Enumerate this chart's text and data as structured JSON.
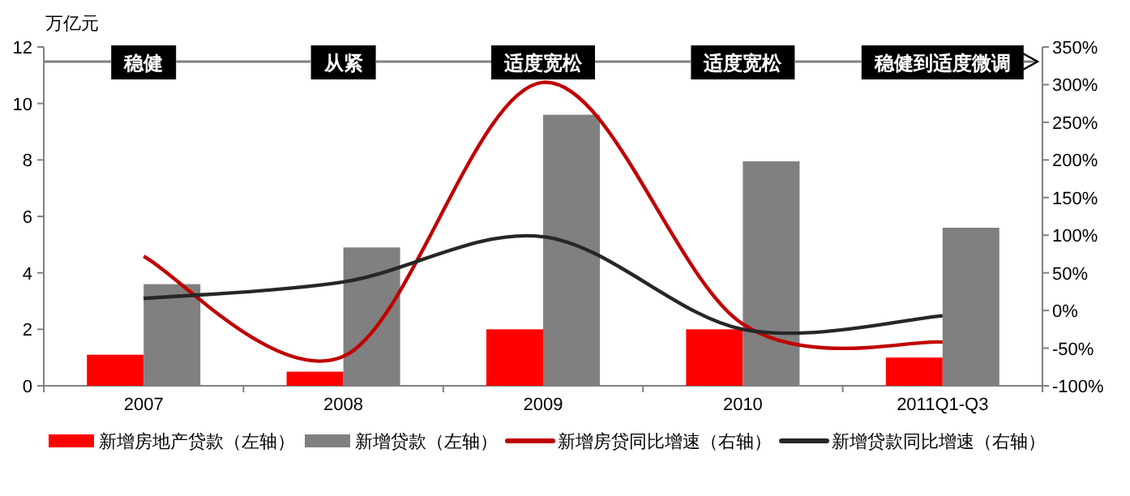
{
  "chart_data": {
    "type": "bar",
    "ylabel": "万亿元",
    "categories": [
      "2007",
      "2008",
      "2009",
      "2010",
      "2011Q1-Q3"
    ],
    "series": [
      {
        "name": "新增房地产贷款（左轴）",
        "color": "#ff0000",
        "values": [
          1.1,
          0.5,
          2.0,
          2.0,
          1.0
        ]
      },
      {
        "name": "新增贷款（左轴）",
        "color": "#808080",
        "values": [
          3.6,
          4.9,
          9.6,
          7.95,
          5.6
        ]
      },
      {
        "name": "新增房贷同比增速（右轴）",
        "type": "line",
        "axis": "y2",
        "color": "#c00000",
        "values": [
          72,
          -61,
          303,
          -18,
          -42
        ]
      },
      {
        "name": "新增贷款同比增速（右轴）",
        "type": "line",
        "axis": "y2",
        "color": "#262626",
        "values": [
          16,
          38,
          98,
          -25,
          -7
        ]
      }
    ],
    "ylim": [
      0,
      12
    ],
    "yticks": [
      0,
      2,
      4,
      6,
      8,
      10,
      12
    ],
    "y2lim": [
      -100,
      350
    ],
    "y2ticks": [
      {
        "value": -100,
        "label": "-100%"
      },
      {
        "value": -50,
        "label": "-50%"
      },
      {
        "value": 0,
        "label": "0%"
      },
      {
        "value": 50,
        "label": "50%"
      },
      {
        "value": 100,
        "label": "100%"
      },
      {
        "value": 150,
        "label": "150%"
      },
      {
        "value": 200,
        "label": "200%"
      },
      {
        "value": 250,
        "label": "250%"
      },
      {
        "value": 300,
        "label": "300%"
      },
      {
        "value": 350,
        "label": "350%"
      }
    ],
    "annotations": [
      "稳健",
      "从紧",
      "适度宽松",
      "适度宽松",
      "稳健到适度微调"
    ],
    "legend": "bottom",
    "grid": false
  }
}
